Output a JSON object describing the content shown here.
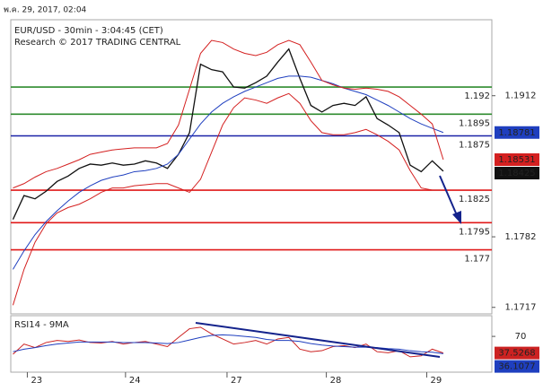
{
  "header": {
    "timestamp": "พ.ค. 29, 2017, 02:04"
  },
  "chart_data": [
    {
      "type": "line",
      "title": "EUR/USD - 30min - 3:04:45 (CET)",
      "subtitle": "Research © 2017 TRADING CENTRAL",
      "x": [
        0,
        1,
        2,
        3,
        4,
        5,
        6,
        7,
        8,
        9,
        10,
        11,
        12,
        13,
        14,
        15,
        16,
        17,
        18,
        19,
        20,
        21,
        22,
        23,
        24,
        25,
        26,
        27,
        28,
        29,
        30,
        31,
        32,
        33,
        34,
        35,
        36,
        37,
        38,
        39
      ],
      "xlim": [
        -0.2,
        43.4
      ],
      "xticks": [
        {
          "value": 1.3,
          "label": "23"
        },
        {
          "value": 10.2,
          "label": "24"
        },
        {
          "value": 19.4,
          "label": "27"
        },
        {
          "value": 28.4,
          "label": "28"
        },
        {
          "value": 37.5,
          "label": "29"
        }
      ],
      "ylim": [
        1.1711,
        1.1982
      ],
      "yticks": [
        1.1912,
        1.1782,
        1.1717
      ],
      "series": [
        {
          "color": "#111111",
          "width": 1.3,
          "last_tag": true,
          "values": [
            1.1798,
            1.182,
            1.1817,
            1.1824,
            1.1833,
            1.1838,
            1.1845,
            1.1849,
            1.1848,
            1.185,
            1.1848,
            1.1849,
            1.1852,
            1.185,
            1.1845,
            1.1858,
            1.1878,
            1.1941,
            1.1936,
            1.1934,
            1.192,
            1.1919,
            1.1924,
            1.193,
            1.1943,
            1.1955,
            1.1928,
            1.1903,
            1.1897,
            1.1903,
            1.1905,
            1.1903,
            1.1911,
            1.1891,
            1.1885,
            1.1878,
            1.1848,
            1.1842,
            1.1852,
            1.18425
          ]
        },
        {
          "color": "#1f3fbf",
          "width": 1,
          "last_tag": true,
          "values": [
            1.1752,
            1.1769,
            1.1784,
            1.1796,
            1.1806,
            1.1815,
            1.1823,
            1.1829,
            1.1834,
            1.1837,
            1.1839,
            1.1842,
            1.1843,
            1.1845,
            1.1849,
            1.1858,
            1.1872,
            1.1886,
            1.1897,
            1.1905,
            1.1911,
            1.1916,
            1.192,
            1.1924,
            1.1928,
            1.193,
            1.193,
            1.1929,
            1.1926,
            1.1923,
            1.1919,
            1.1916,
            1.1913,
            1.1908,
            1.1903,
            1.1897,
            1.1891,
            1.1886,
            1.1882,
            1.18781
          ]
        },
        {
          "color": "#d42020",
          "width": 1,
          "last_tag": true,
          "values": [
            1.1827,
            1.1831,
            1.1837,
            1.1842,
            1.1845,
            1.1849,
            1.1853,
            1.1858,
            1.186,
            1.1862,
            1.1863,
            1.1864,
            1.1864,
            1.1864,
            1.1868,
            1.1885,
            1.1918,
            1.1951,
            1.1963,
            1.1961,
            1.1955,
            1.1951,
            1.1949,
            1.1952,
            1.1959,
            1.1963,
            1.1959,
            1.1943,
            1.1926,
            1.1922,
            1.1919,
            1.1918,
            1.1919,
            1.1918,
            1.1916,
            1.1911,
            1.1903,
            1.1895,
            1.1886,
            1.18531
          ]
        },
        {
          "color": "#d42020",
          "width": 1,
          "last_tag": false,
          "values": [
            1.1719,
            1.1752,
            1.1777,
            1.1794,
            1.1804,
            1.1809,
            1.1812,
            1.1817,
            1.1823,
            1.1827,
            1.1827,
            1.1829,
            1.183,
            1.1831,
            1.1831,
            1.1827,
            1.1823,
            1.1835,
            1.186,
            1.1885,
            1.1901,
            1.191,
            1.1908,
            1.1905,
            1.191,
            1.1914,
            1.1905,
            1.1889,
            1.1878,
            1.1876,
            1.1876,
            1.1878,
            1.1881,
            1.1876,
            1.187,
            1.1862,
            1.1843,
            1.1827,
            1.1825,
            1.1825
          ]
        }
      ],
      "levels": [
        {
          "value": 1.192,
          "color": "#2e8b2e"
        },
        {
          "value": 1.1895,
          "color": "#2e8b2e"
        },
        {
          "value": 1.1875,
          "color": "#1a22a8"
        },
        {
          "value": 1.1825,
          "color": "#e01818"
        },
        {
          "value": 1.1795,
          "color": "#e01818"
        },
        {
          "value": 1.177,
          "color": "#e01818"
        }
      ]
    },
    {
      "type": "line",
      "title": "RSI14 - 9MA",
      "ylim": [
        0,
        100
      ],
      "yticks": [
        70
      ],
      "series": [
        {
          "color": "#cc2222",
          "last_tag": true,
          "values": [
            35,
            55,
            48,
            58,
            62,
            60,
            63,
            58,
            57,
            60,
            55,
            58,
            60,
            55,
            50,
            68,
            85,
            88,
            75,
            65,
            55,
            58,
            62,
            55,
            65,
            68,
            45,
            40,
            42,
            50,
            52,
            48,
            55,
            40,
            38,
            42,
            30,
            32,
            45,
            37.5268
          ]
        },
        {
          "color": "#1f3fbf",
          "last_tag": true,
          "values": [
            40,
            45,
            48,
            52,
            55,
            57,
            59,
            59,
            59,
            59,
            58,
            58,
            58,
            57,
            56,
            58,
            63,
            68,
            72,
            73,
            72,
            70,
            68,
            64,
            62,
            62,
            60,
            56,
            53,
            51,
            50,
            49,
            49,
            48,
            46,
            45,
            42,
            40,
            39,
            36.1077
          ]
        }
      ]
    }
  ]
}
